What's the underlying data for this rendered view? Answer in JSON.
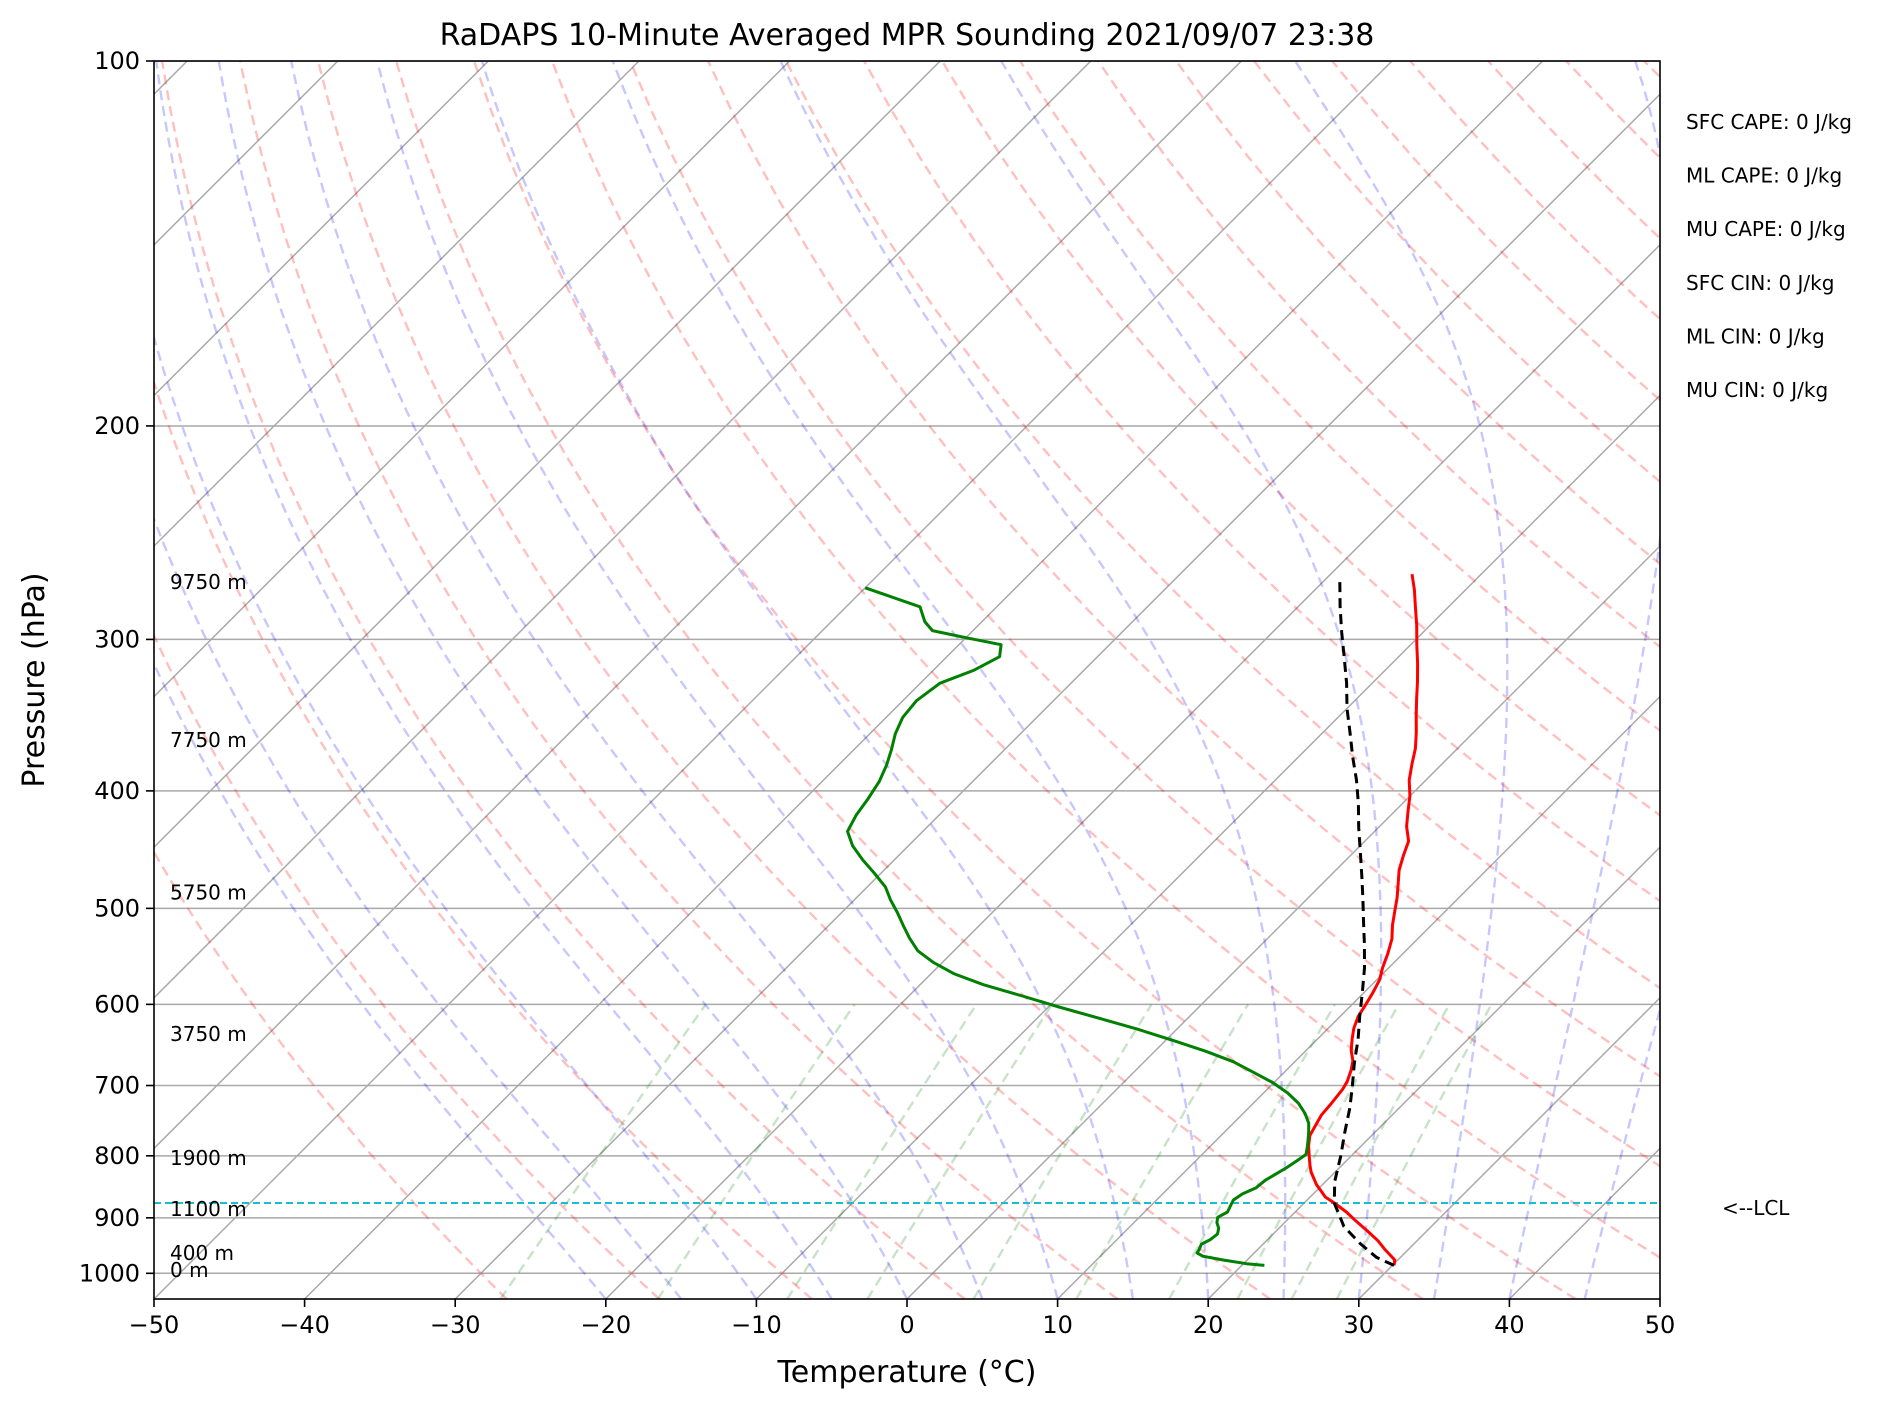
{
  "chart_data": {
    "type": "line",
    "title": "RaDAPS 10-Minute Averaged MPR Sounding 2021/09/07 23:38",
    "xlabel": "Temperature (°C)",
    "ylabel": "Pressure (hPa)",
    "xlim": [
      -50,
      50
    ],
    "ylim": [
      1050,
      100
    ],
    "y_scale": "log",
    "x_ticks": [
      "−50",
      "−40",
      "−30",
      "−20",
      "−10",
      "0",
      "10",
      "20",
      "30",
      "40",
      "50"
    ],
    "y_ticks": [
      "100",
      "200",
      "300",
      "400",
      "500",
      "600",
      "700",
      "800",
      "900",
      "1000"
    ],
    "grid": true,
    "series": [
      {
        "color": "#ff0000",
        "points": [
          [
            30.1,
            985
          ],
          [
            29.8,
            975
          ],
          [
            28.4,
            955
          ],
          [
            27.4,
            940
          ],
          [
            26.0,
            922
          ],
          [
            24.6,
            905
          ],
          [
            23.4,
            890
          ],
          [
            22.0,
            875
          ],
          [
            21.0,
            865
          ],
          [
            20.3,
            855
          ],
          [
            19.6,
            845
          ],
          [
            19.0,
            835
          ],
          [
            18.4,
            825
          ],
          [
            17.9,
            815
          ],
          [
            17.2,
            800
          ],
          [
            16.5,
            785
          ],
          [
            15.9,
            770
          ],
          [
            15.6,
            755
          ],
          [
            15.3,
            740
          ],
          [
            15.2,
            725
          ],
          [
            15.0,
            705
          ],
          [
            14.8,
            695
          ],
          [
            14.3,
            680
          ],
          [
            13.8,
            668
          ],
          [
            13.0,
            655
          ],
          [
            12.3,
            641
          ],
          [
            11.7,
            628
          ],
          [
            11.2,
            614
          ],
          [
            10.9,
            600
          ],
          [
            10.6,
            587
          ],
          [
            10.2,
            573
          ],
          [
            9.6,
            560
          ],
          [
            9.0,
            545
          ],
          [
            8.3,
            530
          ],
          [
            7.4,
            516
          ],
          [
            6.6,
            502
          ],
          [
            5.9,
            490
          ],
          [
            5.1,
            478
          ],
          [
            4.2,
            465
          ],
          [
            3.5,
            452
          ],
          [
            2.9,
            440
          ],
          [
            1.8,
            428
          ],
          [
            0.9,
            416
          ],
          [
            0.0,
            404
          ],
          [
            -1.1,
            392
          ],
          [
            -2.0,
            380
          ],
          [
            -2.8,
            369
          ],
          [
            -3.8,
            358
          ],
          [
            -4.9,
            347
          ],
          [
            -6.0,
            336
          ],
          [
            -7.1,
            325
          ],
          [
            -8.3,
            314
          ],
          [
            -9.6,
            303
          ],
          [
            -10.9,
            292
          ],
          [
            -12.2,
            282
          ],
          [
            -13.4,
            273
          ],
          [
            -14.6,
            265
          ]
        ]
      },
      {
        "color": "#008000",
        "points": [
          [
            21.5,
            985
          ],
          [
            20.2,
            982
          ],
          [
            18.4,
            975
          ],
          [
            16.8,
            968
          ],
          [
            16.2,
            962
          ],
          [
            16.1,
            955
          ],
          [
            15.9,
            946
          ],
          [
            16.2,
            938
          ],
          [
            16.3,
            928
          ],
          [
            16.0,
            918
          ],
          [
            15.5,
            908
          ],
          [
            15.2,
            899
          ],
          [
            15.5,
            890
          ],
          [
            15.3,
            880
          ],
          [
            15.1,
            870
          ],
          [
            15.3,
            860
          ],
          [
            15.8,
            850
          ],
          [
            15.9,
            838
          ],
          [
            16.2,
            828
          ],
          [
            16.5,
            818
          ],
          [
            16.7,
            808
          ],
          [
            16.9,
            798
          ],
          [
            16.5,
            787
          ],
          [
            16.1,
            777
          ],
          [
            15.6,
            765
          ],
          [
            15.0,
            752
          ],
          [
            14.1,
            738
          ],
          [
            13.0,
            724
          ],
          [
            11.6,
            710
          ],
          [
            9.9,
            696
          ],
          [
            8.0,
            683
          ],
          [
            5.9,
            669
          ],
          [
            3.4,
            656
          ],
          [
            0.6,
            643
          ],
          [
            -2.6,
            629
          ],
          [
            -5.9,
            616
          ],
          [
            -9.3,
            603
          ],
          [
            -12.6,
            590
          ],
          [
            -15.8,
            578
          ],
          [
            -18.5,
            566
          ],
          [
            -20.6,
            554
          ],
          [
            -22.4,
            542
          ],
          [
            -23.8,
            529
          ],
          [
            -25.0,
            517
          ],
          [
            -26.3,
            504
          ],
          [
            -27.6,
            492
          ],
          [
            -28.8,
            480
          ],
          [
            -30.4,
            468
          ],
          [
            -32.1,
            456
          ],
          [
            -33.7,
            444
          ],
          [
            -35.0,
            432
          ],
          [
            -35.5,
            419
          ],
          [
            -35.8,
            406
          ],
          [
            -36.2,
            393
          ],
          [
            -36.8,
            381
          ],
          [
            -37.5,
            370
          ],
          [
            -38.3,
            359
          ],
          [
            -38.9,
            348
          ],
          [
            -39.1,
            337
          ],
          [
            -38.7,
            326
          ],
          [
            -37.3,
            318
          ],
          [
            -36.5,
            310
          ],
          [
            -37.2,
            303
          ],
          [
            -40.0,
            299
          ],
          [
            -42.7,
            295
          ],
          [
            -43.8,
            290
          ],
          [
            -45.1,
            282
          ],
          [
            -50.0,
            272
          ]
        ]
      },
      {
        "color": "#000000",
        "dashed": true,
        "points": [
          [
            30.1,
            985
          ],
          [
            28.4,
            970
          ],
          [
            26.4,
            945
          ],
          [
            24.2,
            915
          ],
          [
            22.0,
            875
          ],
          [
            20.6,
            840
          ],
          [
            19.3,
            800
          ],
          [
            18.0,
            765
          ],
          [
            16.7,
            730
          ],
          [
            15.4,
            700
          ],
          [
            14.0,
            670
          ],
          [
            12.7,
            641
          ],
          [
            11.3,
            614
          ],
          [
            9.9,
            587
          ],
          [
            8.4,
            560
          ],
          [
            6.8,
            535
          ],
          [
            5.2,
            512
          ],
          [
            3.7,
            491
          ],
          [
            2.1,
            470
          ],
          [
            0.4,
            449
          ],
          [
            -1.3,
            429
          ],
          [
            -2.9,
            410
          ],
          [
            -4.6,
            392
          ],
          [
            -6.4,
            375
          ],
          [
            -8.2,
            358
          ],
          [
            -10.0,
            342
          ],
          [
            -11.7,
            326
          ],
          [
            -13.5,
            311
          ],
          [
            -15.4,
            296
          ],
          [
            -17.2,
            282
          ],
          [
            -19.0,
            268
          ]
        ]
      }
    ],
    "annotations": [
      {
        "text": "0 m",
        "p": 994
      },
      {
        "text": "400 m",
        "p": 962
      },
      {
        "text": "1100 m",
        "p": 885
      },
      {
        "text": "1900 m",
        "p": 803
      },
      {
        "text": "3750 m",
        "p": 635
      },
      {
        "text": "5750 m",
        "p": 485
      },
      {
        "text": "7750 m",
        "p": 363
      },
      {
        "text": "9750 m",
        "p": 269
      }
    ],
    "lcl": {
      "p": 875,
      "label": "<--LCL",
      "color": "#17becf"
    },
    "indices": [
      "SFC CAPE: 0 J/kg",
      "ML CAPE: 0 J/kg",
      "MU CAPE: 0 J/kg",
      "SFC CIN: 0 J/kg",
      "ML CIN: 0 J/kg",
      "MU CIN: 0 J/kg"
    ]
  }
}
